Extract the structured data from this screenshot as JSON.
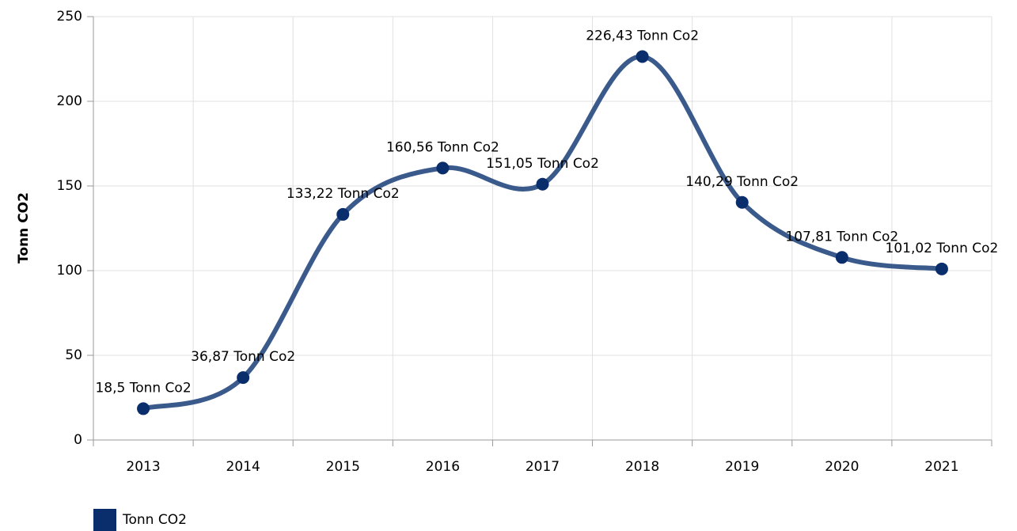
{
  "chart_data": {
    "type": "line",
    "y_label": "Tonn CO2",
    "categories": [
      "2013",
      "2014",
      "2015",
      "2016",
      "2017",
      "2018",
      "2019",
      "2020",
      "2021"
    ],
    "series": [
      {
        "name": "Tonn CO2",
        "color": "#3a5a8c",
        "marker_color": "#0a2d6b",
        "values": [
          18.5,
          36.87,
          133.22,
          160.56,
          151.05,
          226.43,
          140.29,
          107.81,
          101.02
        ],
        "value_labels": [
          "18,5 Tonn Co2",
          "36,87 Tonn Co2",
          "133,22 Tonn Co2",
          "160,56 Tonn Co2",
          "151,05 Tonn Co2",
          "226,43 Tonn Co2",
          "140,29 Tonn Co2",
          "107,81 Tonn Co2",
          "101,02 Tonn Co2"
        ]
      }
    ],
    "ylim": [
      0,
      250
    ],
    "yticks": [
      0,
      50,
      100,
      150,
      200,
      250
    ],
    "grid": true,
    "smooth": true,
    "legend": "bottom-left"
  }
}
